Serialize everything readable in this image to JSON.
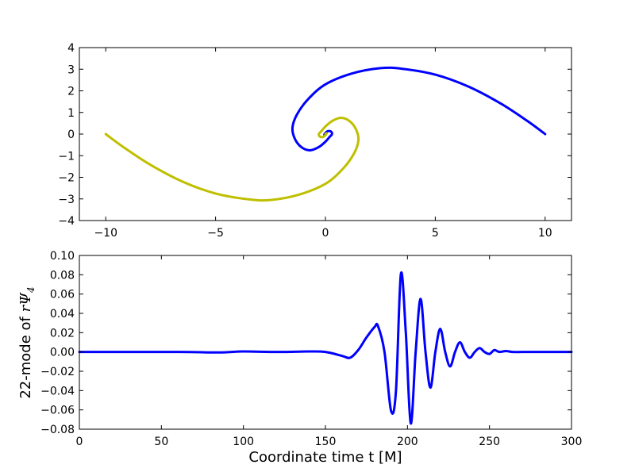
{
  "chart_data": [
    {
      "type": "line",
      "title": "",
      "xlabel": "",
      "ylabel": "",
      "xlim": [
        -11.2,
        11.2
      ],
      "ylim": [
        -4,
        4
      ],
      "xticks": [
        -10,
        -5,
        0,
        5,
        10
      ],
      "xtick_labels": [
        "−10",
        "−5",
        "0",
        "5",
        "10"
      ],
      "yticks": [
        -4,
        -3,
        -2,
        -1,
        0,
        1,
        2,
        3,
        4
      ],
      "ytick_labels": [
        "−4",
        "−3",
        "−2",
        "−1",
        "0",
        "1",
        "2",
        "3",
        "4"
      ],
      "grid": false,
      "series": [
        {
          "color": "#0000ff",
          "x": [
            10,
            9.2,
            8,
            6.5,
            5,
            3.5,
            2.5,
            1.2,
            0,
            -0.8,
            -1.3,
            -1.5,
            -1.4,
            -1.1,
            -0.7,
            -0.3,
            0,
            0.2,
            0.3,
            0.25,
            0.1,
            0,
            -0.05,
            0
          ],
          "y": [
            0,
            0.6,
            1.4,
            2.2,
            2.75,
            3.02,
            3.05,
            2.8,
            2.3,
            1.6,
            0.9,
            0.3,
            -0.2,
            -0.6,
            -0.75,
            -0.6,
            -0.35,
            -0.12,
            0,
            0.12,
            0.13,
            0.05,
            -0.03,
            0
          ]
        },
        {
          "color": "#bfbf00",
          "x": [
            -10,
            -9.2,
            -8,
            -6.5,
            -5,
            -3.5,
            -2.5,
            -1.2,
            0,
            0.8,
            1.3,
            1.5,
            1.4,
            1.1,
            0.7,
            0.3,
            0,
            -0.2,
            -0.3,
            -0.25,
            -0.1,
            0,
            0.05,
            0
          ],
          "y": [
            0,
            -0.6,
            -1.4,
            -2.2,
            -2.75,
            -3.02,
            -3.05,
            -2.8,
            -2.3,
            -1.6,
            -0.9,
            -0.3,
            0.2,
            0.6,
            0.75,
            0.6,
            0.35,
            0.12,
            0,
            -0.12,
            -0.13,
            -0.05,
            0.03,
            0
          ]
        }
      ]
    },
    {
      "type": "line",
      "title": "",
      "xlabel": "Coordinate time t [M]",
      "ylabel_prefix": "22-mode of ",
      "ylabel_math": "rΨ",
      "ylabel_sub": "4",
      "xlim": [
        0,
        300
      ],
      "ylim": [
        -0.08,
        0.1
      ],
      "xticks": [
        0,
        50,
        100,
        150,
        200,
        250,
        300
      ],
      "xtick_labels": [
        "0",
        "50",
        "100",
        "150",
        "200",
        "250",
        "300"
      ],
      "yticks": [
        -0.08,
        -0.06,
        -0.04,
        -0.02,
        0,
        0.02,
        0.04,
        0.06,
        0.08,
        0.1
      ],
      "ytick_labels": [
        "−0.08",
        "−0.06",
        "−0.04",
        "−0.02",
        "0.00",
        "0.02",
        "0.04",
        "0.06",
        "0.08",
        "0.10"
      ],
      "grid": false,
      "series": [
        {
          "color": "#0000ff",
          "x": [
            0,
            60,
            85,
            100,
            120,
            140,
            150,
            160,
            165,
            170,
            175,
            180,
            182,
            186,
            190,
            193,
            196,
            199,
            202,
            205,
            208,
            211,
            214,
            217,
            220,
            223,
            226,
            229,
            232,
            235,
            238,
            241,
            244,
            247,
            250,
            253,
            256,
            260,
            264,
            270,
            280,
            300
          ],
          "y": [
            0,
            0,
            -0.0005,
            0.0005,
            0,
            0.0005,
            0,
            -0.004,
            -0.006,
            0.002,
            0.015,
            0.026,
            0.027,
            0,
            -0.061,
            -0.04,
            0.081,
            0.02,
            -0.074,
            0,
            0.055,
            0,
            -0.037,
            0,
            0.024,
            0,
            -0.015,
            0,
            0.01,
            0,
            -0.006,
            0,
            0.004,
            0,
            -0.002,
            0.002,
            0,
            0.001,
            0,
            0,
            0,
            0
          ]
        }
      ]
    }
  ]
}
